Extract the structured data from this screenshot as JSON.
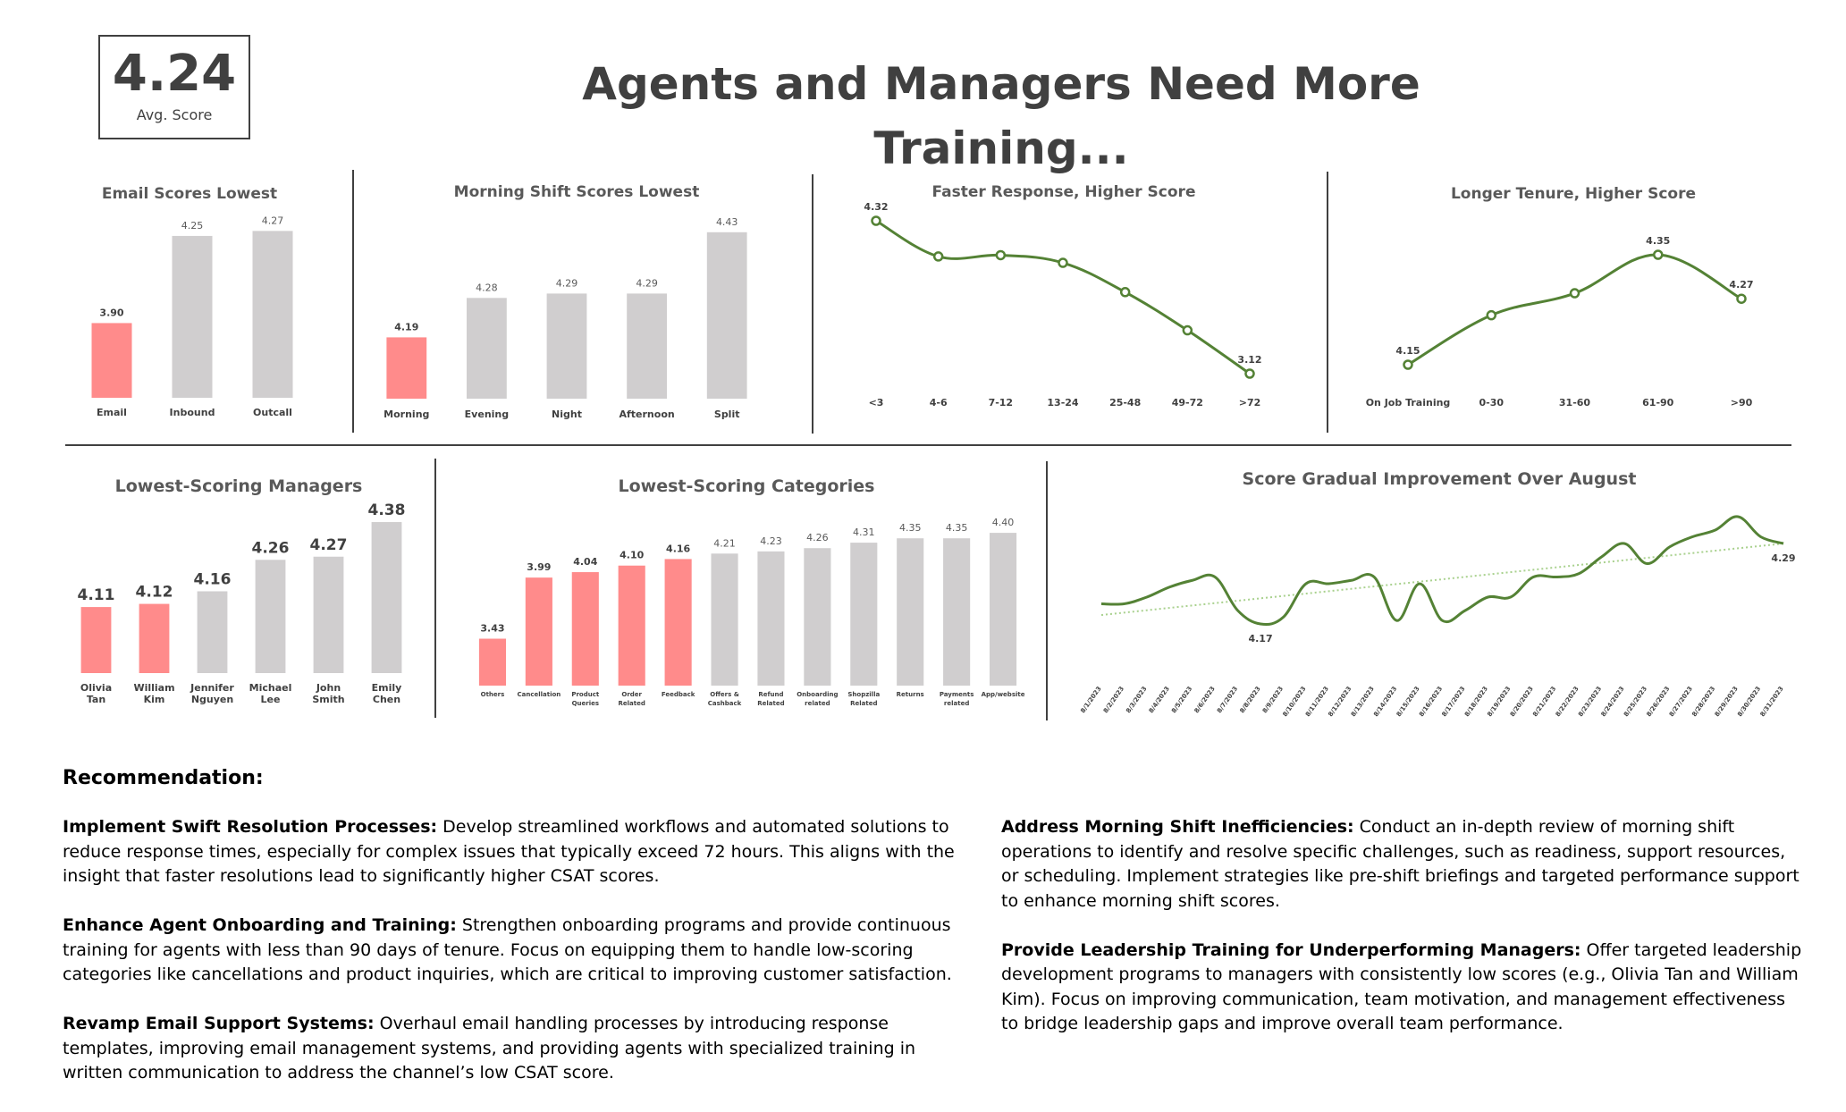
{
  "kpi": {
    "value": "4.24",
    "label": "Avg. Score"
  },
  "title": "Agents and Managers Need More Training...",
  "colors": {
    "highlight": "#ff8b8b",
    "neutral": "#d0cecf",
    "line": "#548235",
    "text": "#404040"
  },
  "chart_data": [
    {
      "type": "bar",
      "title": "Email Scores Lowest",
      "categories": [
        "Email",
        "Inbound",
        "Outcall"
      ],
      "values": [
        3.9,
        4.25,
        4.27
      ],
      "value_labels": [
        "3.90",
        "4.25",
        "4.27"
      ],
      "highlight": [
        true,
        false,
        false
      ]
    },
    {
      "type": "bar",
      "title": "Morning Shift Scores Lowest",
      "categories": [
        "Morning",
        "Evening",
        "Night",
        "Afternoon",
        "Split"
      ],
      "values": [
        4.19,
        4.28,
        4.29,
        4.29,
        4.43
      ],
      "value_labels": [
        "4.19",
        "4.28",
        "4.29",
        "4.29",
        "4.43"
      ],
      "highlight": [
        true,
        false,
        false,
        false,
        false
      ]
    },
    {
      "type": "line",
      "title": "Faster Response, Higher Score",
      "categories": [
        "<3",
        "4-6",
        "7-12",
        "13-24",
        "25-48",
        "49-72",
        ">72"
      ],
      "values": [
        4.32,
        4.04,
        4.05,
        3.99,
        3.76,
        3.46,
        3.12
      ],
      "value_labels": [
        "4.32",
        "",
        "",
        "",
        "",
        "",
        "3.12"
      ]
    },
    {
      "type": "line",
      "title": "Longer Tenure, Higher Score",
      "categories": [
        "On Job Training",
        "0-30",
        "31-60",
        "61-90",
        ">90"
      ],
      "values": [
        4.15,
        4.24,
        4.28,
        4.35,
        4.27
      ],
      "value_labels": [
        "4.15",
        "",
        "",
        "4.35",
        "4.27"
      ]
    },
    {
      "type": "bar",
      "title": "Lowest-Scoring Managers",
      "categories": [
        "Olivia Tan",
        "William Kim",
        "Jennifer Nguyen",
        "Michael Lee",
        "John Smith",
        "Emily Chen"
      ],
      "values": [
        4.11,
        4.12,
        4.16,
        4.26,
        4.27,
        4.38
      ],
      "value_labels": [
        "4.11",
        "4.12",
        "4.16",
        "4.26",
        "4.27",
        "4.38"
      ],
      "highlight": [
        true,
        true,
        false,
        false,
        false,
        false
      ]
    },
    {
      "type": "bar",
      "title": "Lowest-Scoring Categories",
      "categories": [
        "Others",
        "Cancellation",
        "Product Queries",
        "Order Related",
        "Feedback",
        "Offers & Cashback",
        "Refund Related",
        "Onboarding related",
        "Shopzilla Related",
        "Returns",
        "Payments related",
        "App/website"
      ],
      "values": [
        3.43,
        3.99,
        4.04,
        4.1,
        4.16,
        4.21,
        4.23,
        4.26,
        4.31,
        4.35,
        4.35,
        4.4
      ],
      "value_labels": [
        "3.43",
        "3.99",
        "4.04",
        "4.10",
        "4.16",
        "4.21",
        "4.23",
        "4.26",
        "4.31",
        "4.35",
        "4.35",
        "4.40"
      ],
      "highlight": [
        true,
        true,
        true,
        true,
        true,
        false,
        false,
        false,
        false,
        false,
        false,
        false
      ]
    },
    {
      "type": "line",
      "title": "Score Gradual Improvement Over August",
      "trendline": true,
      "categories": [
        "8/1/2023",
        "8/2/2023",
        "8/3/2023",
        "8/4/2023",
        "8/5/2023",
        "8/6/2023",
        "8/7/2023",
        "8/8/2023",
        "8/9/2023",
        "8/10/2023",
        "8/11/2023",
        "8/12/2023",
        "8/13/2023",
        "8/14/2023",
        "8/15/2023",
        "8/16/2023",
        "8/17/2023",
        "8/18/2023",
        "8/19/2023",
        "8/20/2023",
        "8/21/2023",
        "8/22/2023",
        "8/23/2023",
        "8/24/2023",
        "8/25/2023",
        "8/26/2023",
        "8/27/2023",
        "8/28/2023",
        "8/29/2023",
        "8/30/2023",
        "8/31/2023"
      ],
      "values": [
        4.2,
        4.2,
        4.21,
        4.225,
        4.235,
        4.24,
        4.19,
        4.17,
        4.18,
        4.23,
        4.23,
        4.235,
        4.24,
        4.175,
        4.23,
        4.175,
        4.19,
        4.21,
        4.21,
        4.24,
        4.24,
        4.245,
        4.27,
        4.29,
        4.26,
        4.285,
        4.3,
        4.31,
        4.33,
        4.3,
        4.29
      ],
      "value_labels": [
        "",
        "",
        "",
        "",
        "",
        "",
        "",
        "4.17",
        "",
        "",
        "",
        "",
        "",
        "",
        "",
        "",
        "",
        "",
        "",
        "",
        "",
        "",
        "",
        "",
        "",
        "",
        "",
        "",
        "",
        "",
        "4.29"
      ]
    }
  ],
  "recommendation": {
    "heading": "Recommendation:",
    "left": [
      {
        "bold": "Implement Swift Resolution Processes:",
        "text": " Develop streamlined workflows and automated solutions to reduce response times, especially for complex issues that typically exceed 72 hours. This aligns with the insight that faster resolutions lead to significantly higher CSAT scores."
      },
      {
        "bold": "Enhance Agent Onboarding and Training:",
        "text": " Strengthen onboarding programs and provide continuous training for agents with less than 90 days of tenure. Focus on equipping them to handle low-scoring categories like cancellations and product inquiries, which are critical to improving customer satisfaction."
      },
      {
        "bold": "Revamp Email Support Systems:",
        "text": " Overhaul email handling processes by introducing response templates, improving email management systems, and providing agents with specialized training in written communication to address the channel’s low CSAT score."
      }
    ],
    "right": [
      {
        "bold": "Address Morning Shift Inefficiencies:",
        "text": " Conduct an in-depth review of morning shift operations to identify and resolve specific challenges, such as readiness, support resources, or scheduling. Implement strategies like pre-shift briefings and targeted performance support to enhance morning shift scores."
      },
      {
        "bold": "Provide Leadership Training for Underperforming Managers:",
        "text": " Offer targeted leadership development programs to managers with consistently low scores (e.g., Olivia Tan and William Kim). Focus on improving communication, team motivation, and management effectiveness to bridge leadership gaps and improve overall team performance."
      }
    ]
  }
}
